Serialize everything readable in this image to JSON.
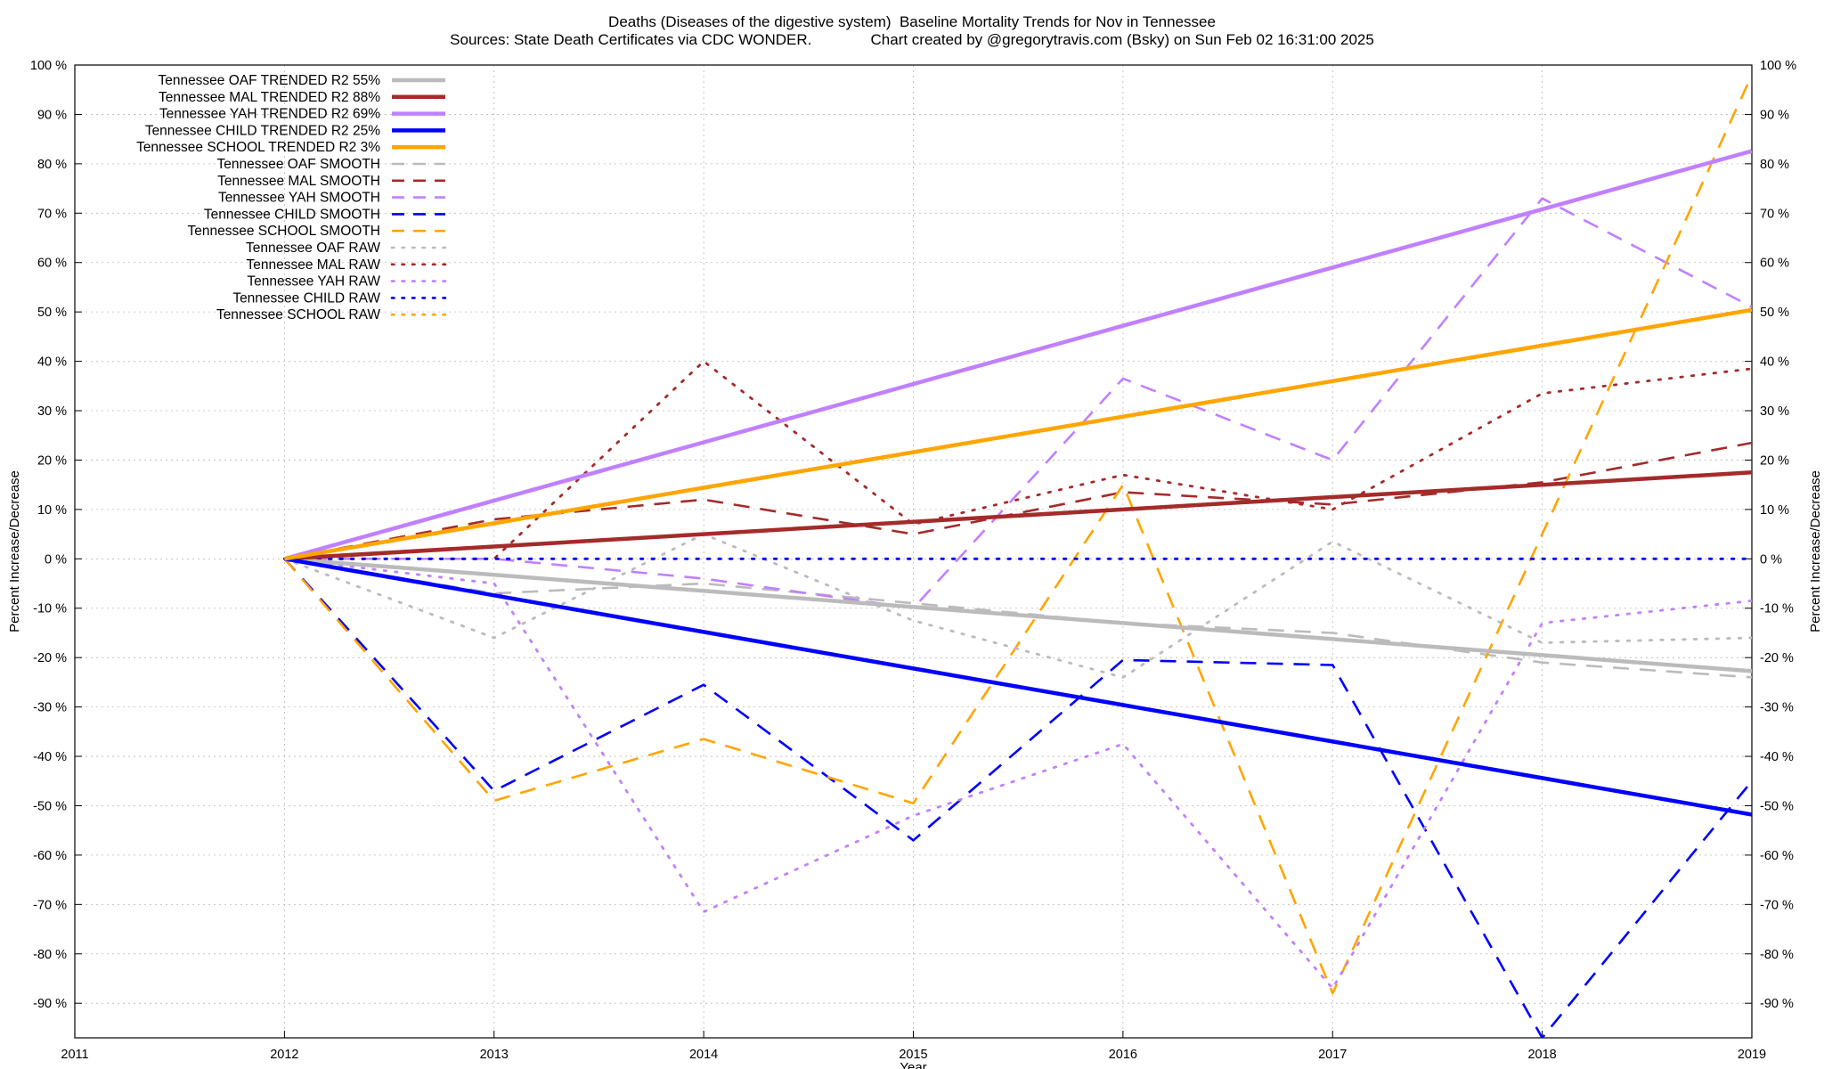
{
  "chart_data": {
    "type": "line",
    "title": "Deaths (Diseases of the digestive system)  Baseline Mortality Trends for Nov in Tennessee",
    "subtitle": "Sources: State Death Certificates via CDC WONDER.              Chart created by @gregorytravis.com (Bsky) on Sun Feb 02 16:31:00 2025",
    "xlabel": "Year",
    "ylabel": "Percent Increase/Decrease",
    "y2label": "Percent Increase/Decrease",
    "xlim": [
      2011,
      2019
    ],
    "ylim": [
      -97,
      100
    ],
    "x_ticks": [
      "2011",
      "2012",
      "2013",
      "2014",
      "2015",
      "2016",
      "2017",
      "2018",
      "2019"
    ],
    "y_ticks": [
      "100 %",
      "90 %",
      "80 %",
      "70 %",
      "60 %",
      "50 %",
      "40 %",
      "30 %",
      "20 %",
      "10 %",
      "0 %",
      "-10 %",
      "-20 %",
      "-30 %",
      "-40 %",
      "-50 %",
      "-60 %",
      "-70 %",
      "-80 %",
      "-90 %"
    ],
    "y_tick_values": [
      100,
      90,
      80,
      70,
      60,
      50,
      40,
      30,
      20,
      10,
      0,
      -10,
      -20,
      -30,
      -40,
      -50,
      -60,
      -70,
      -80,
      -90
    ],
    "grid": true,
    "legend_position": "top-left",
    "x": [
      2012,
      2013,
      2014,
      2015,
      2016,
      2017,
      2018,
      2019
    ],
    "series": [
      {
        "name": "Tennessee OAF TRENDED R2  55%",
        "color": "#bbbbbb",
        "style": "solid",
        "values": [
          0,
          -3.25,
          -6.5,
          -9.75,
          -13,
          -16.25,
          -19.5,
          -22.75
        ]
      },
      {
        "name": "Tennessee MAL TRENDED R2  88%",
        "color": "#a52a2a",
        "style": "solid",
        "values": [
          0,
          2.5,
          5,
          7.5,
          10,
          12.5,
          15,
          17.5
        ]
      },
      {
        "name": "Tennessee YAH TRENDED R2  69%",
        "color": "#c080ff",
        "style": "solid",
        "values": [
          0,
          11.8,
          23.6,
          35.4,
          47.2,
          59,
          70.8,
          82.6
        ]
      },
      {
        "name": "Tennessee CHILD TRENDED R2  25%",
        "color": "#0000ff",
        "style": "solid",
        "values": [
          0,
          -7.4,
          -14.8,
          -22.2,
          -29.6,
          -37,
          -44.4,
          -51.8
        ]
      },
      {
        "name": "Tennessee SCHOOL TRENDED R2   3%",
        "color": "#ffa500",
        "style": "solid",
        "values": [
          0,
          7.2,
          14.4,
          21.6,
          28.8,
          36,
          43.2,
          50.4
        ]
      },
      {
        "name": "Tennessee OAF SMOOTH",
        "color": "#bbbbbb",
        "style": "dashed",
        "values": [
          0,
          -7,
          -5,
          -9,
          -13,
          -15,
          -21,
          -24
        ]
      },
      {
        "name": "Tennessee MAL SMOOTH",
        "color": "#a52a2a",
        "style": "dashed",
        "values": [
          0,
          8,
          12,
          5,
          13.5,
          11,
          15.5,
          23.5
        ]
      },
      {
        "name": "Tennessee YAH SMOOTH",
        "color": "#c080ff",
        "style": "dashed",
        "values": [
          0,
          0,
          -4,
          -10,
          36.5,
          20,
          73,
          51
        ]
      },
      {
        "name": "Tennessee CHILD SMOOTH",
        "color": "#0000ff",
        "style": "dashed",
        "values": [
          0,
          -47,
          -25.5,
          -57,
          -20.5,
          -21.5,
          -97,
          -45
        ]
      },
      {
        "name": "Tennessee SCHOOL SMOOTH",
        "color": "#ffa500",
        "style": "dashed",
        "values": [
          0,
          -49,
          -36.5,
          -49.5,
          15,
          -88,
          5,
          98
        ]
      },
      {
        "name": "Tennessee OAF RAW",
        "color": "#bbbbbb",
        "style": "dotted",
        "values": [
          0,
          -16,
          5,
          -12.5,
          -24,
          3.5,
          -17,
          -16
        ]
      },
      {
        "name": "Tennessee MAL RAW",
        "color": "#a52a2a",
        "style": "dotted",
        "values": [
          0,
          0,
          40,
          7,
          17,
          10,
          33.5,
          38.5
        ]
      },
      {
        "name": "Tennessee YAH RAW",
        "color": "#c080ff",
        "style": "dotted",
        "values": [
          0,
          -5,
          -71.5,
          -52,
          -37.5,
          -87,
          -13,
          -8.5
        ]
      },
      {
        "name": "Tennessee CHILD RAW",
        "color": "#0000ff",
        "style": "dotted",
        "values": [
          0,
          0,
          0,
          0,
          0,
          0,
          0,
          0
        ]
      },
      {
        "name": "Tennessee SCHOOL RAW",
        "color": "#ffa500",
        "style": "dotted",
        "values": [
          null,
          null,
          null,
          null,
          null,
          null,
          null,
          null
        ]
      }
    ]
  }
}
